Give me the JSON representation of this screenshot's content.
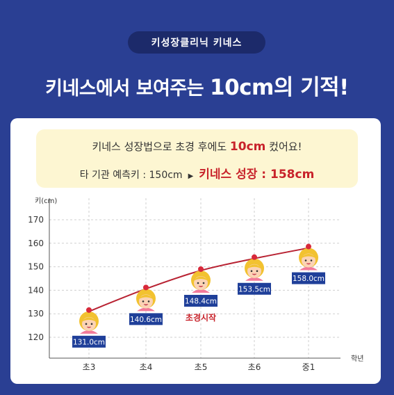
{
  "header": {
    "pill": "키성장클리닉 키네스",
    "headline_pre": "키네스에서 보여주는 ",
    "headline_big": "10cm의 기적!"
  },
  "note": {
    "line1_pre": "키네스 성장법으로 초경 후에도 ",
    "line1_accent": "10cm",
    "line1_post": " 컸어요!",
    "line2_pre": "타 기관 예측키 : 150cm",
    "line2_arrow": "▶",
    "line2_result": "키네스 성장 : 158cm"
  },
  "chart_data": {
    "type": "line",
    "ylabel": "키(cm)",
    "xlabel": "학년",
    "categories": [
      "초3",
      "초4",
      "초5",
      "초6",
      "중1"
    ],
    "values": [
      131.0,
      140.6,
      148.4,
      153.5,
      158.0
    ],
    "data_labels": [
      "131.0cm",
      "140.6cm",
      "148.4cm",
      "153.5cm",
      "158.0cm"
    ],
    "yticks": [
      120,
      130,
      140,
      150,
      160,
      170
    ],
    "ylim": [
      115,
      175
    ],
    "grid": true,
    "annotation": {
      "category": "초5",
      "text": "초경시작"
    },
    "colors": {
      "line": "#b82232",
      "label_bg": "#1f3f99",
      "label_text": "#ffffff",
      "annotation": "#c8232b"
    }
  }
}
